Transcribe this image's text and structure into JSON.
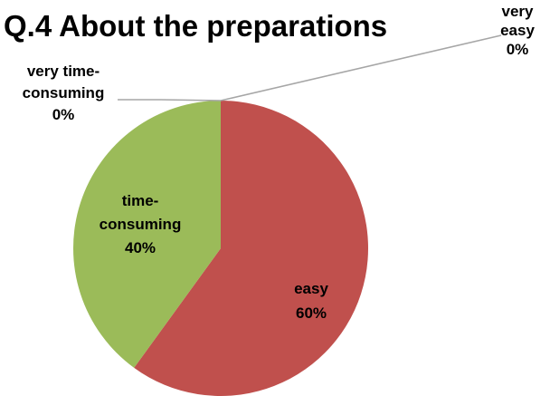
{
  "chart_data": {
    "type": "pie",
    "title": "Q.4 About the preparations",
    "labels": [
      "very easy",
      "easy",
      "time-consuming",
      "very time-consuming"
    ],
    "values": [
      0,
      60,
      40,
      0
    ],
    "colors": [
      "#4f81bd",
      "#c0504d",
      "#9bbb59",
      "#8064a2"
    ],
    "data_label_lines": [
      [
        "very",
        "easy",
        "0%"
      ],
      [
        "easy",
        "60%"
      ],
      [
        "time-",
        "consuming",
        "40%"
      ],
      [
        "very time-",
        "consuming",
        "0%"
      ]
    ]
  }
}
